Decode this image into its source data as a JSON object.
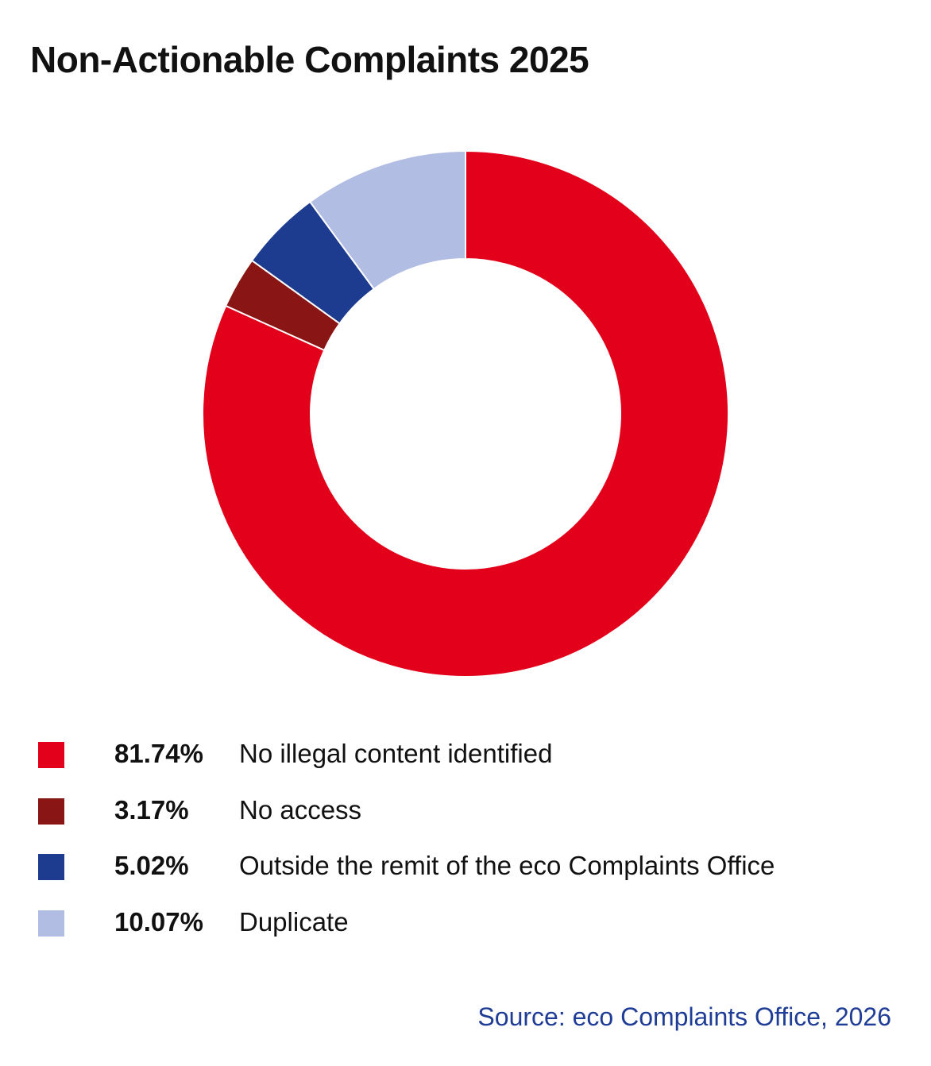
{
  "chart_data": {
    "type": "pie",
    "title": "Non-Actionable Complaints 2025",
    "donut": true,
    "categories": [
      "No illegal content identified",
      "No access",
      "Outside the remit of the eco Complaints Office",
      "Duplicate"
    ],
    "values": [
      81.74,
      3.17,
      5.02,
      10.07
    ],
    "value_labels": [
      "81.74%",
      "3.17%",
      "5.02%",
      "10.07%"
    ],
    "colors": [
      "#e2001a",
      "#8a1515",
      "#1e3c8f",
      "#b1bde2"
    ],
    "start_angle_deg": 0,
    "direction": "clockwise",
    "legend_position": "bottom-left"
  },
  "source": "Source: eco Complaints Office, 2026"
}
